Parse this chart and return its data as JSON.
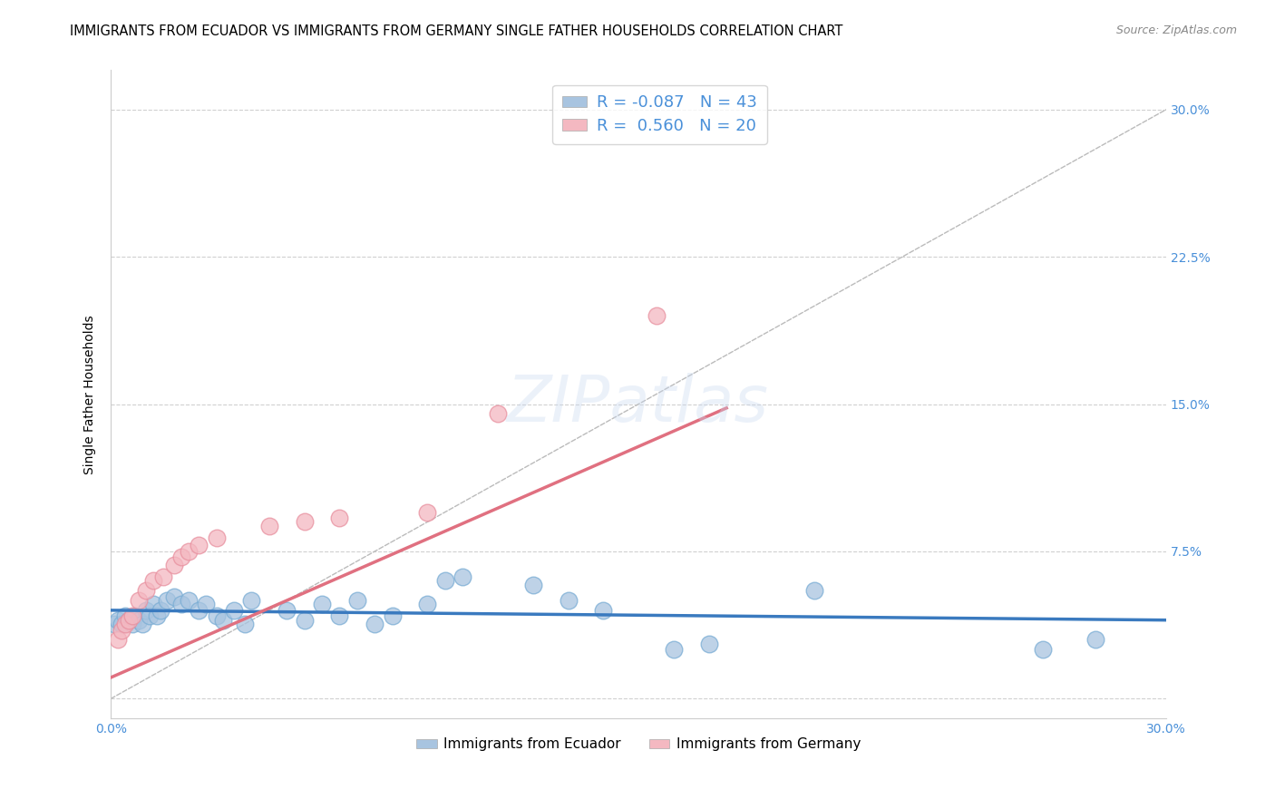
{
  "title": "IMMIGRANTS FROM ECUADOR VS IMMIGRANTS FROM GERMANY SINGLE FATHER HOUSEHOLDS CORRELATION CHART",
  "source": "Source: ZipAtlas.com",
  "ylabel": "Single Father Households",
  "xlim": [
    0.0,
    0.3
  ],
  "ylim": [
    -0.01,
    0.32
  ],
  "yticks": [
    0.0,
    0.075,
    0.15,
    0.225,
    0.3
  ],
  "ytick_labels": [
    "",
    "7.5%",
    "15.0%",
    "22.5%",
    "30.0%"
  ],
  "xticks": [
    0.0,
    0.05,
    0.1,
    0.15,
    0.2,
    0.25,
    0.3
  ],
  "xtick_labels": [
    "0.0%",
    "",
    "",
    "",
    "",
    "",
    "30.0%"
  ],
  "ecuador_color": "#a8c4e0",
  "germany_color": "#f4b8c1",
  "ecuador_edge_color": "#7aadd4",
  "germany_edge_color": "#e8909f",
  "ecuador_R": -0.087,
  "ecuador_N": 43,
  "germany_R": 0.56,
  "germany_N": 20,
  "legend_label_ecuador": "Immigrants from Ecuador",
  "legend_label_germany": "Immigrants from Germany",
  "background_color": "#ffffff",
  "grid_color": "#d0d0d0",
  "axis_color": "#4a90d9",
  "ecuador_line_color": "#3a7abf",
  "germany_line_color": "#e07080",
  "ecuador_scatter_x": [
    0.001,
    0.002,
    0.003,
    0.004,
    0.005,
    0.006,
    0.007,
    0.008,
    0.009,
    0.01,
    0.011,
    0.012,
    0.013,
    0.014,
    0.016,
    0.018,
    0.02,
    0.022,
    0.025,
    0.027,
    0.03,
    0.032,
    0.035,
    0.038,
    0.04,
    0.05,
    0.055,
    0.06,
    0.065,
    0.07,
    0.075,
    0.08,
    0.09,
    0.095,
    0.1,
    0.12,
    0.13,
    0.14,
    0.16,
    0.17,
    0.2,
    0.265,
    0.28
  ],
  "ecuador_scatter_y": [
    0.038,
    0.04,
    0.038,
    0.042,
    0.04,
    0.038,
    0.042,
    0.04,
    0.038,
    0.045,
    0.042,
    0.048,
    0.042,
    0.045,
    0.05,
    0.052,
    0.048,
    0.05,
    0.045,
    0.048,
    0.042,
    0.04,
    0.045,
    0.038,
    0.05,
    0.045,
    0.04,
    0.048,
    0.042,
    0.05,
    0.038,
    0.042,
    0.048,
    0.06,
    0.062,
    0.058,
    0.05,
    0.045,
    0.025,
    0.028,
    0.055,
    0.025,
    0.03
  ],
  "germany_scatter_x": [
    0.002,
    0.003,
    0.004,
    0.005,
    0.006,
    0.008,
    0.01,
    0.012,
    0.015,
    0.018,
    0.02,
    0.022,
    0.025,
    0.03,
    0.045,
    0.055,
    0.065,
    0.09,
    0.11,
    0.155
  ],
  "germany_scatter_y": [
    0.03,
    0.035,
    0.038,
    0.04,
    0.042,
    0.05,
    0.055,
    0.06,
    0.062,
    0.068,
    0.072,
    0.075,
    0.078,
    0.082,
    0.088,
    0.09,
    0.092,
    0.095,
    0.145,
    0.195
  ],
  "ecuador_trendline_x": [
    0.0,
    0.3
  ],
  "ecuador_trendline_y": [
    0.045,
    0.04
  ],
  "germany_trendline_x": [
    -0.001,
    0.175
  ],
  "germany_trendline_y": [
    0.01,
    0.148
  ],
  "dashed_line_x": [
    0.0,
    0.3
  ],
  "dashed_line_y": [
    0.0,
    0.3
  ],
  "title_fontsize": 10.5,
  "source_fontsize": 9,
  "tick_label_fontsize": 10,
  "legend_fontsize": 11,
  "ylabel_fontsize": 10
}
